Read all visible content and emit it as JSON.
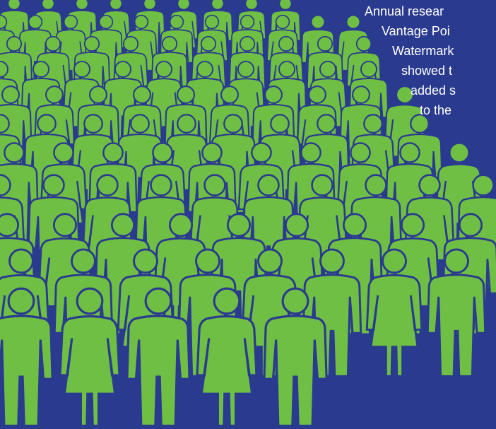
{
  "caption": {
    "lines": [
      "Annual resear",
      "Vantage Poi",
      "Watermark",
      "showed t",
      "added s",
      "to the"
    ]
  }
}
